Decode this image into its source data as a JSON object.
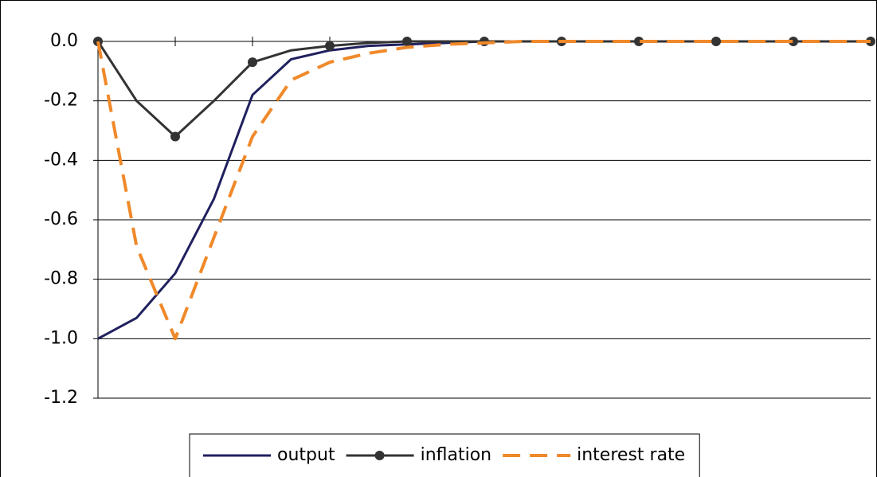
{
  "chart_data": {
    "type": "line",
    "x": [
      0,
      0.5,
      1,
      1.5,
      2,
      2.5,
      3,
      3.5,
      4,
      4.5,
      5,
      5.5,
      6,
      6.5,
      7,
      7.5,
      8,
      8.5,
      9,
      9.5,
      10
    ],
    "series": [
      {
        "name": "output",
        "color": "#20205f",
        "dash": false,
        "marker": false,
        "values": [
          -1.0,
          -0.93,
          -0.78,
          -0.53,
          -0.18,
          -0.06,
          -0.03,
          -0.015,
          -0.01,
          -0.005,
          0,
          0,
          0,
          0,
          0,
          0,
          0,
          0,
          0,
          0,
          0
        ]
      },
      {
        "name": "inflation",
        "color": "#333333",
        "dash": false,
        "marker": true,
        "values": [
          0,
          -0.2,
          -0.32,
          -0.2,
          -0.07,
          -0.03,
          -0.015,
          -0.005,
          0,
          0,
          0,
          0,
          0,
          0,
          0,
          0,
          0,
          0,
          0,
          0,
          0
        ]
      },
      {
        "name": "interest rate",
        "color": "#f0892a",
        "dash": true,
        "marker": false,
        "values": [
          0,
          -0.69,
          -1.0,
          -0.66,
          -0.32,
          -0.13,
          -0.07,
          -0.04,
          -0.02,
          -0.01,
          -0.005,
          0,
          0,
          0,
          0,
          0,
          0,
          0,
          0,
          0,
          0
        ]
      }
    ],
    "xlim": [
      0,
      10
    ],
    "xticks": [
      0,
      1,
      2,
      3,
      4,
      5,
      6,
      7,
      8,
      9,
      10
    ],
    "ylim": [
      -1.2,
      0
    ],
    "yticks": [
      {
        "value": 0,
        "label": "0.0"
      },
      {
        "value": -0.2,
        "label": "-0.2"
      },
      {
        "value": -0.4,
        "label": "-0.4"
      },
      {
        "value": -0.6,
        "label": "-0.6"
      },
      {
        "value": -0.8,
        "label": "-0.8"
      },
      {
        "value": -1.0,
        "label": "-1.0"
      },
      {
        "value": -1.2,
        "label": "-1.2"
      }
    ],
    "grid": true,
    "legend": "bottom"
  }
}
